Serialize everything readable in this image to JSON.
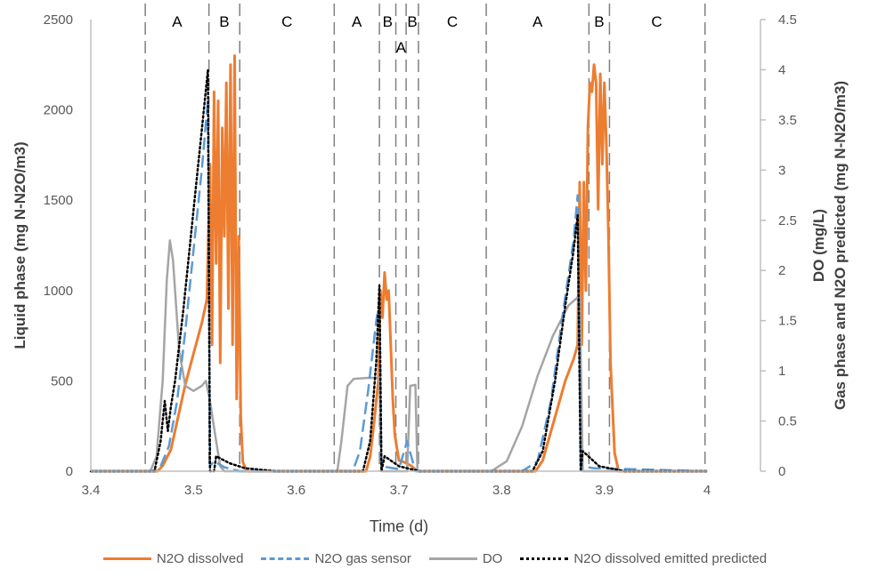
{
  "chart_data": {
    "type": "line",
    "title": "",
    "xlabel": "Time (d)",
    "ylabel_left": "Liquid phase (mg N-N2O/m3)",
    "ylabel_right_line1": "DO (mg/L)",
    "ylabel_right_line2": "Gas phase and N2O predicted (mg N-N2O/m3)",
    "xlim": [
      3.4,
      4.0
    ],
    "ylim_left": [
      0,
      2500
    ],
    "ylim_right": [
      0,
      4.5
    ],
    "x_ticks": [
      "3.4",
      "3.5",
      "3.6",
      "3.7",
      "3.8",
      "3.9",
      "4"
    ],
    "x_tick_values": [
      3.4,
      3.5,
      3.6,
      3.7,
      3.8,
      3.9,
      4.0
    ],
    "y_left_ticks": [
      "0",
      "500",
      "1000",
      "1500",
      "2000",
      "2500"
    ],
    "y_left_tick_values": [
      0,
      500,
      1000,
      1500,
      2000,
      2500
    ],
    "y_right_ticks": [
      "0",
      "0.5",
      "1",
      "1.5",
      "2",
      "2.5",
      "3",
      "3.5",
      "4",
      "4.5"
    ],
    "y_right_tick_values": [
      0,
      0.5,
      1,
      1.5,
      2,
      2.5,
      3,
      3.5,
      4,
      4.5
    ],
    "grid": false,
    "legend_position": "bottom",
    "phase_boundaries": [
      3.453,
      3.515,
      3.545,
      3.637,
      3.681,
      3.697,
      3.707,
      3.719,
      3.785,
      3.885,
      3.905,
      3.998
    ],
    "phase_labels": [
      {
        "label": "A",
        "x": 3.484,
        "row": 0
      },
      {
        "label": "B",
        "x": 3.53,
        "row": 0
      },
      {
        "label": "C",
        "x": 3.591,
        "row": 0
      },
      {
        "label": "A",
        "x": 3.659,
        "row": 0
      },
      {
        "label": "B",
        "x": 3.689,
        "row": 0
      },
      {
        "label": "A",
        "x": 3.702,
        "row": 1
      },
      {
        "label": "B",
        "x": 3.713,
        "row": 0
      },
      {
        "label": "C",
        "x": 3.752,
        "row": 0
      },
      {
        "label": "A",
        "x": 3.835,
        "row": 0
      },
      {
        "label": "B",
        "x": 3.895,
        "row": 0
      },
      {
        "label": "C",
        "x": 3.951,
        "row": 0
      }
    ],
    "series": [
      {
        "name": "N2O dissolved",
        "axis": "left",
        "color": "#ED7D31",
        "style": "solid",
        "points": [
          [
            3.4,
            0
          ],
          [
            3.465,
            0
          ],
          [
            3.47,
            30
          ],
          [
            3.478,
            120
          ],
          [
            3.485,
            300
          ],
          [
            3.492,
            480
          ],
          [
            3.5,
            650
          ],
          [
            3.508,
            820
          ],
          [
            3.513,
            950
          ],
          [
            3.516,
            1700
          ],
          [
            3.518,
            700
          ],
          [
            3.52,
            2100
          ],
          [
            3.522,
            1150
          ],
          [
            3.524,
            2050
          ],
          [
            3.526,
            600
          ],
          [
            3.528,
            1900
          ],
          [
            3.53,
            1300
          ],
          [
            3.532,
            2150
          ],
          [
            3.534,
            900
          ],
          [
            3.536,
            2250
          ],
          [
            3.538,
            700
          ],
          [
            3.54,
            2300
          ],
          [
            3.542,
            400
          ],
          [
            3.544,
            1300
          ],
          [
            3.546,
            300
          ],
          [
            3.548,
            50
          ],
          [
            3.552,
            0
          ],
          [
            3.668,
            0
          ],
          [
            3.672,
            80
          ],
          [
            3.676,
            280
          ],
          [
            3.68,
            500
          ],
          [
            3.682,
            1000
          ],
          [
            3.684,
            850
          ],
          [
            3.686,
            1100
          ],
          [
            3.688,
            950
          ],
          [
            3.69,
            1000
          ],
          [
            3.692,
            700
          ],
          [
            3.694,
            400
          ],
          [
            3.696,
            200
          ],
          [
            3.7,
            60
          ],
          [
            3.705,
            50
          ],
          [
            3.712,
            30
          ],
          [
            3.718,
            0
          ],
          [
            3.833,
            0
          ],
          [
            3.84,
            60
          ],
          [
            3.848,
            220
          ],
          [
            3.856,
            380
          ],
          [
            3.862,
            500
          ],
          [
            3.87,
            620
          ],
          [
            3.874,
            700
          ],
          [
            3.876,
            1600
          ],
          [
            3.878,
            700
          ],
          [
            3.88,
            1600
          ],
          [
            3.882,
            1000
          ],
          [
            3.884,
            1900
          ],
          [
            3.886,
            2150
          ],
          [
            3.888,
            2100
          ],
          [
            3.89,
            2250
          ],
          [
            3.892,
            2150
          ],
          [
            3.894,
            1450
          ],
          [
            3.896,
            2200
          ],
          [
            3.898,
            1700
          ],
          [
            3.9,
            2150
          ],
          [
            3.902,
            1800
          ],
          [
            3.904,
            1300
          ],
          [
            3.906,
            600
          ],
          [
            3.91,
            100
          ],
          [
            3.914,
            0
          ],
          [
            4.0,
            0
          ]
        ]
      },
      {
        "name": "N2O gas sensor",
        "axis": "right",
        "color": "#5B9BD5",
        "style": "dashed",
        "points": [
          [
            3.4,
            0
          ],
          [
            3.46,
            0
          ],
          [
            3.468,
            0.05
          ],
          [
            3.476,
            0.25
          ],
          [
            3.484,
            0.7
          ],
          [
            3.492,
            1.4
          ],
          [
            3.5,
            2.2
          ],
          [
            3.508,
            3.0
          ],
          [
            3.514,
            3.7
          ],
          [
            3.516,
            0.05
          ],
          [
            3.52,
            0.1
          ],
          [
            3.53,
            0.04
          ],
          [
            3.545,
            0
          ],
          [
            3.655,
            0
          ],
          [
            3.662,
            0.2
          ],
          [
            3.67,
            0.8
          ],
          [
            3.678,
            1.5
          ],
          [
            3.681,
            1.7
          ],
          [
            3.683,
            0.05
          ],
          [
            3.7,
            0.02
          ],
          [
            3.708,
            0.3
          ],
          [
            3.712,
            0.15
          ],
          [
            3.716,
            0
          ],
          [
            3.82,
            0
          ],
          [
            3.835,
            0.1
          ],
          [
            3.848,
            0.7
          ],
          [
            3.86,
            1.6
          ],
          [
            3.87,
            2.3
          ],
          [
            3.874,
            2.75
          ],
          [
            3.877,
            0.05
          ],
          [
            3.89,
            0.03
          ],
          [
            4.0,
            0
          ]
        ]
      },
      {
        "name": "DO",
        "axis": "right",
        "color": "#A5A5A5",
        "style": "solid",
        "points": [
          [
            3.4,
            0
          ],
          [
            3.458,
            0
          ],
          [
            3.464,
            0.15
          ],
          [
            3.47,
            0.9
          ],
          [
            3.474,
            1.9
          ],
          [
            3.477,
            2.3
          ],
          [
            3.48,
            2.1
          ],
          [
            3.486,
            1.2
          ],
          [
            3.492,
            0.85
          ],
          [
            3.5,
            0.8
          ],
          [
            3.508,
            0.85
          ],
          [
            3.512,
            0.9
          ],
          [
            3.516,
            0.7
          ],
          [
            3.522,
            0.3
          ],
          [
            3.526,
            0.05
          ],
          [
            3.53,
            0
          ],
          [
            3.64,
            0
          ],
          [
            3.644,
            0.3
          ],
          [
            3.65,
            0.85
          ],
          [
            3.656,
            0.92
          ],
          [
            3.67,
            0.93
          ],
          [
            3.681,
            0.93
          ],
          [
            3.683,
            0
          ],
          [
            3.708,
            0
          ],
          [
            3.711,
            0.85
          ],
          [
            3.716,
            0.86
          ],
          [
            3.718,
            0
          ],
          [
            3.79,
            0
          ],
          [
            3.805,
            0.1
          ],
          [
            3.82,
            0.45
          ],
          [
            3.835,
            0.95
          ],
          [
            3.85,
            1.35
          ],
          [
            3.865,
            1.65
          ],
          [
            3.876,
            1.75
          ],
          [
            3.879,
            0
          ],
          [
            4.0,
            0
          ]
        ]
      },
      {
        "name": "N2O dissolved emitted predicted",
        "axis": "right",
        "color": "#000000",
        "style": "dotted",
        "points": [
          [
            3.4,
            0
          ],
          [
            3.462,
            0
          ],
          [
            3.468,
            0.3
          ],
          [
            3.472,
            0.7
          ],
          [
            3.475,
            0.4
          ],
          [
            3.478,
            0.65
          ],
          [
            3.482,
            0.9
          ],
          [
            3.49,
            1.6
          ],
          [
            3.5,
            2.6
          ],
          [
            3.508,
            3.4
          ],
          [
            3.514,
            4.0
          ],
          [
            3.516,
            0
          ],
          [
            3.52,
            0
          ],
          [
            3.522,
            0.15
          ],
          [
            3.535,
            0.08
          ],
          [
            3.55,
            0.03
          ],
          [
            3.58,
            0
          ],
          [
            3.665,
            0
          ],
          [
            3.672,
            0.3
          ],
          [
            3.678,
            1.1
          ],
          [
            3.681,
            1.85
          ],
          [
            3.683,
            0
          ],
          [
            3.686,
            0.15
          ],
          [
            3.7,
            0.05
          ],
          [
            3.72,
            0
          ],
          [
            3.83,
            0
          ],
          [
            3.84,
            0.2
          ],
          [
            3.852,
            0.9
          ],
          [
            3.862,
            1.65
          ],
          [
            3.87,
            2.2
          ],
          [
            3.874,
            2.55
          ],
          [
            3.877,
            0
          ],
          [
            3.879,
            0.2
          ],
          [
            3.895,
            0.05
          ],
          [
            3.92,
            0
          ],
          [
            4.0,
            0
          ]
        ]
      }
    ]
  },
  "legend": {
    "items": [
      {
        "label": "N2O dissolved",
        "color": "#ED7D31",
        "style": "solid"
      },
      {
        "label": "N2O gas sensor",
        "color": "#5B9BD5",
        "style": "dashed"
      },
      {
        "label": "DO",
        "color": "#A5A5A5",
        "style": "solid"
      },
      {
        "label": "N2O dissolved emitted predicted",
        "color": "#000000",
        "style": "dotted"
      }
    ]
  }
}
